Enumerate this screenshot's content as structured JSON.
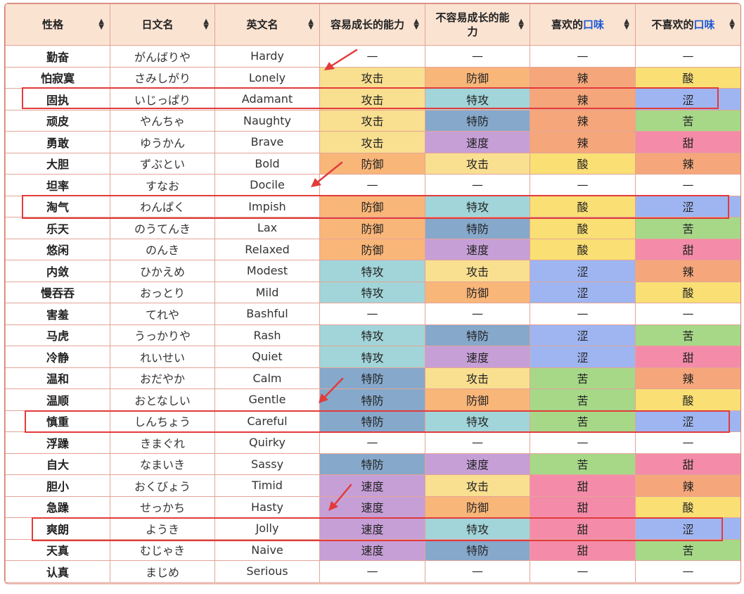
{
  "headers": [
    {
      "text": "性格"
    },
    {
      "text": "日文名"
    },
    {
      "text": "英文名"
    },
    {
      "text": "容易成长的能力"
    },
    {
      "text": "不容易成长的能力"
    },
    {
      "text_before": "喜欢的",
      "text_hl": "口味"
    },
    {
      "text_before": "不喜欢的",
      "text_hl": "口味"
    }
  ],
  "sort_icon": "sort-arrows-icon",
  "colors": {
    "攻击": "#f9df90",
    "防御": "#f9b679",
    "特攻": "#a2d5d9",
    "特防": "#86a8cb",
    "速度": "#c69fd7",
    "辣": "#f5a77b",
    "酸": "#f9df74",
    "涩": "#9eb5f1",
    "苦": "#a6d888",
    "甜": "#f48ca9",
    "—": "#ffffff",
    "highlight_border": "#e23b3b",
    "header_bg": "#fbe3d2",
    "flavor_highlight": "#1b59d6"
  },
  "rows": [
    {
      "zh": "勤奋",
      "jp": "がんばりや",
      "en": "Hardy",
      "up": "—",
      "down": "—",
      "like": "—",
      "dislike": "—"
    },
    {
      "zh": "怕寂寞",
      "jp": "さみしがり",
      "en": "Lonely",
      "up": "攻击",
      "down": "防御",
      "like": "辣",
      "dislike": "酸"
    },
    {
      "zh": "固执",
      "jp": "いじっぱり",
      "en": "Adamant",
      "up": "攻击",
      "down": "特攻",
      "like": "辣",
      "dislike": "涩"
    },
    {
      "zh": "顽皮",
      "jp": "やんちゃ",
      "en": "Naughty",
      "up": "攻击",
      "down": "特防",
      "like": "辣",
      "dislike": "苦"
    },
    {
      "zh": "勇敢",
      "jp": "ゆうかん",
      "en": "Brave",
      "up": "攻击",
      "down": "速度",
      "like": "辣",
      "dislike": "甜"
    },
    {
      "zh": "大胆",
      "jp": "ずぶとい",
      "en": "Bold",
      "up": "防御",
      "down": "攻击",
      "like": "酸",
      "dislike": "辣"
    },
    {
      "zh": "坦率",
      "jp": "すなお",
      "en": "Docile",
      "up": "—",
      "down": "—",
      "like": "—",
      "dislike": "—"
    },
    {
      "zh": "淘气",
      "jp": "わんぱく",
      "en": "Impish",
      "up": "防御",
      "down": "特攻",
      "like": "酸",
      "dislike": "涩"
    },
    {
      "zh": "乐天",
      "jp": "のうてんき",
      "en": "Lax",
      "up": "防御",
      "down": "特防",
      "like": "酸",
      "dislike": "苦"
    },
    {
      "zh": "悠闲",
      "jp": "のんき",
      "en": "Relaxed",
      "up": "防御",
      "down": "速度",
      "like": "酸",
      "dislike": "甜"
    },
    {
      "zh": "内敛",
      "jp": "ひかえめ",
      "en": "Modest",
      "up": "特攻",
      "down": "攻击",
      "like": "涩",
      "dislike": "辣"
    },
    {
      "zh": "慢吞吞",
      "jp": "おっとり",
      "en": "Mild",
      "up": "特攻",
      "down": "防御",
      "like": "涩",
      "dislike": "酸"
    },
    {
      "zh": "害羞",
      "jp": "てれや",
      "en": "Bashful",
      "up": "—",
      "down": "—",
      "like": "—",
      "dislike": "—"
    },
    {
      "zh": "马虎",
      "jp": "うっかりや",
      "en": "Rash",
      "up": "特攻",
      "down": "特防",
      "like": "涩",
      "dislike": "苦"
    },
    {
      "zh": "冷静",
      "jp": "れいせい",
      "en": "Quiet",
      "up": "特攻",
      "down": "速度",
      "like": "涩",
      "dislike": "甜"
    },
    {
      "zh": "温和",
      "jp": "おだやか",
      "en": "Calm",
      "up": "特防",
      "down": "攻击",
      "like": "苦",
      "dislike": "辣"
    },
    {
      "zh": "温顺",
      "jp": "おとなしい",
      "en": "Gentle",
      "up": "特防",
      "down": "防御",
      "like": "苦",
      "dislike": "酸"
    },
    {
      "zh": "慎重",
      "jp": "しんちょう",
      "en": "Careful",
      "up": "特防",
      "down": "特攻",
      "like": "苦",
      "dislike": "涩"
    },
    {
      "zh": "浮躁",
      "jp": "きまぐれ",
      "en": "Quirky",
      "up": "—",
      "down": "—",
      "like": "—",
      "dislike": "—"
    },
    {
      "zh": "自大",
      "jp": "なまいき",
      "en": "Sassy",
      "up": "特防",
      "down": "速度",
      "like": "苦",
      "dislike": "甜"
    },
    {
      "zh": "胆小",
      "jp": "おくびょう",
      "en": "Timid",
      "up": "速度",
      "down": "攻击",
      "like": "甜",
      "dislike": "辣"
    },
    {
      "zh": "急躁",
      "jp": "せっかち",
      "en": "Hasty",
      "up": "速度",
      "down": "防御",
      "like": "甜",
      "dislike": "酸"
    },
    {
      "zh": "爽朗",
      "jp": "ようき",
      "en": "Jolly",
      "up": "速度",
      "down": "特攻",
      "like": "甜",
      "dislike": "涩"
    },
    {
      "zh": "天真",
      "jp": "むじゃき",
      "en": "Naive",
      "up": "速度",
      "down": "特防",
      "like": "甜",
      "dislike": "苦"
    },
    {
      "zh": "认真",
      "jp": "まじめ",
      "en": "Serious",
      "up": "—",
      "down": "—",
      "like": "—",
      "dislike": "—"
    }
  ]
}
